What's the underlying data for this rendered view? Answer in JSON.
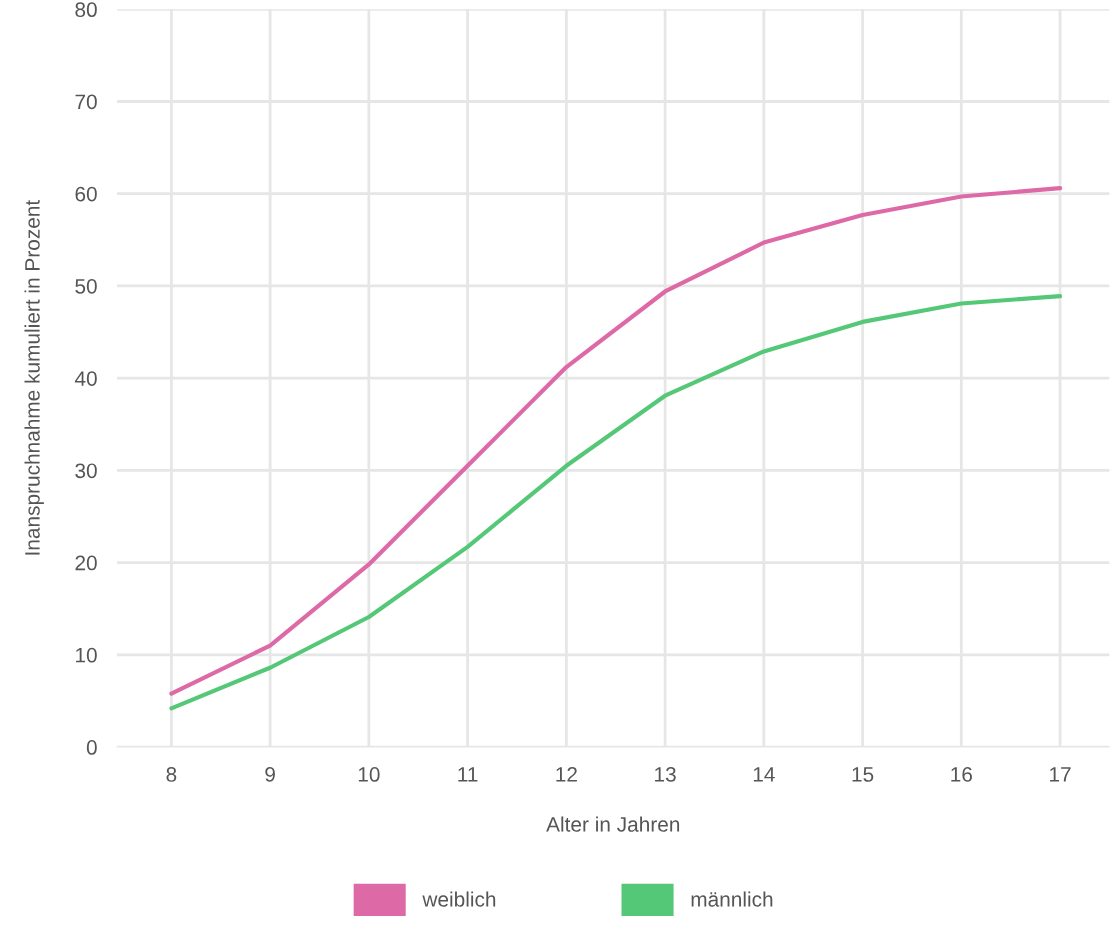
{
  "chart_data": {
    "type": "line",
    "xlabel": "Alter in Jahren",
    "ylabel": "Inanspruchnahme kumuliert in Prozent",
    "categories": [
      "8",
      "9",
      "10",
      "11",
      "12",
      "13",
      "14",
      "15",
      "16",
      "17"
    ],
    "series": [
      {
        "name": "weiblich",
        "color": "#dd6aa6",
        "values": [
          5.8,
          11.0,
          19.8,
          30.5,
          41.2,
          49.4,
          54.7,
          57.7,
          59.7,
          60.6
        ]
      },
      {
        "name": "männlich",
        "color": "#55c878",
        "values": [
          4.2,
          8.6,
          14.1,
          21.7,
          30.5,
          38.1,
          42.9,
          46.1,
          48.1,
          48.9
        ]
      }
    ],
    "ylim": [
      0,
      80
    ],
    "yticks": [
      0,
      10,
      20,
      30,
      40,
      50,
      60,
      70,
      80
    ],
    "grid": true,
    "legend": "bottom",
    "marker": "none",
    "line_style": "solid"
  }
}
